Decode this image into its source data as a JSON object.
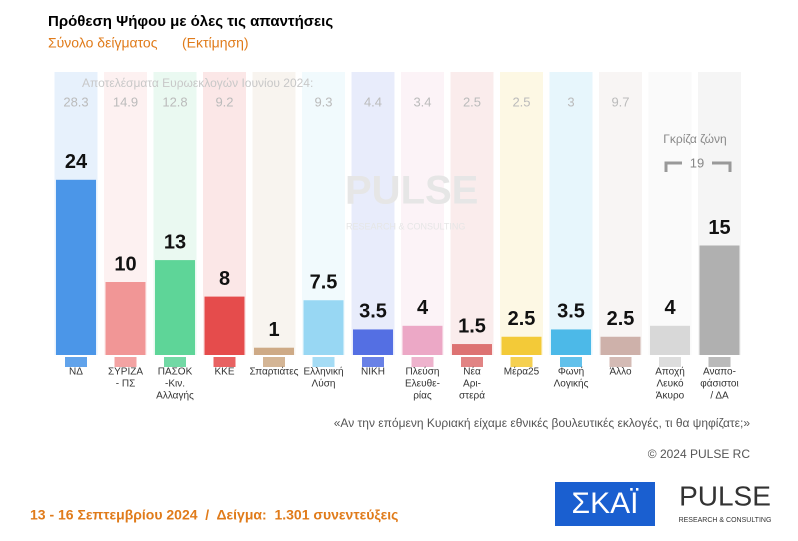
{
  "chart_data": {
    "type": "bar",
    "title": "Πρόθεση Ψήφου με όλες τις απαντήσεις",
    "subtitle": [
      "Σύνολο δείγματος",
      "(Εκτίμηση)"
    ],
    "categories": [
      [
        "ΝΔ"
      ],
      [
        "ΣΥΡΙΖΑ",
        "- ΠΣ"
      ],
      [
        "ΠΑΣΟΚ",
        "-Κιν.",
        "Αλλαγής"
      ],
      [
        "ΚΚΕ"
      ],
      [
        "Σπαρτιάτες"
      ],
      [
        "Ελληνική",
        "Λύση"
      ],
      [
        "ΝΙΚΗ"
      ],
      [
        "Πλεύση",
        "Ελευθε-",
        "ρίας"
      ],
      [
        "Νέα",
        "Αρι-",
        "στερά"
      ],
      [
        "Μέρα25"
      ],
      [
        "Φωνή",
        "Λογικής"
      ],
      [
        "Άλλο"
      ],
      [
        "Αποχή",
        "Λευκό",
        "Άκυρο"
      ],
      [
        "Αναπο-",
        "φάσιστοι",
        "/ ΔΑ"
      ]
    ],
    "values": [
      24,
      10,
      13,
      8,
      1,
      7.5,
      3.5,
      4,
      1.5,
      2.5,
      3.5,
      2.5,
      4,
      15
    ],
    "colors": [
      "#3a8ce6",
      "#f08c8c",
      "#4fd08e",
      "#e23b3b",
      "#c9a27a",
      "#8ed3f2",
      "#4462e0",
      "#eaa0c0",
      "#d96565",
      "#f2c425",
      "#3bb2e6",
      "#c9aaa2",
      "#d4d4d4",
      "#a9a9a9"
    ],
    "euro_results": {
      "title": "Αποτελέσματα Ευρωεκλογών Ιουνίου 2024:",
      "values": [
        28.3,
        14.9,
        12.8,
        9.2,
        null,
        9.3,
        4.4,
        3.4,
        2.5,
        2.5,
        3,
        9.7,
        null,
        null
      ]
    },
    "gray_zone": {
      "label": "Γκρίζα ζώνη",
      "value": 19
    },
    "question": "«Αν την επόμενη Κυριακή είχαμε εθνικές βουλευτικές εκλογές, τι θα ψηφίζατε;»",
    "copyright": "© 2024 PULSE RC",
    "footer": "13 - 16 Σεπτεμβρίου 2024  /  Δείγμα:  1.301 συνεντεύξεις",
    "logos": {
      "skai": "ΣΚΑΪ",
      "pulse": "PULSE",
      "pulse_sub": "RESEARCH & CONSULTING"
    },
    "watermark": [
      "PULSE",
      "RESEARCH & CONSULTING"
    ]
  }
}
